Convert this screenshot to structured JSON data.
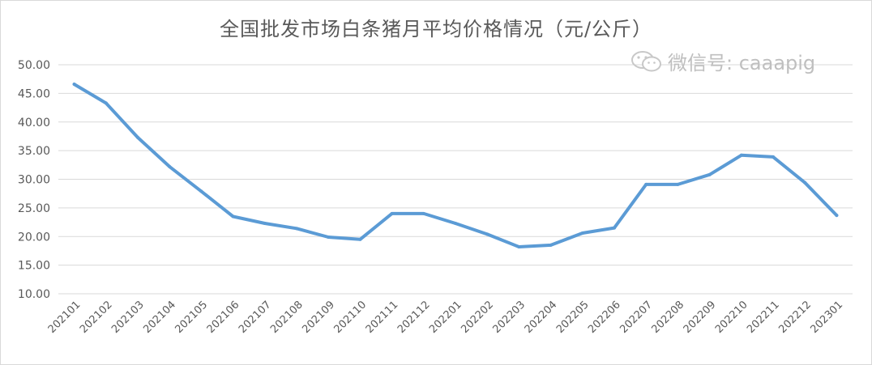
{
  "chart_data": {
    "type": "line",
    "title": "全国批发市场白条猪月平均价格情况（元/公斤）",
    "xlabel": "",
    "ylabel": "",
    "ylim": [
      10,
      50
    ],
    "yticks": [
      "10.00",
      "15.00",
      "20.00",
      "25.00",
      "30.00",
      "35.00",
      "40.00",
      "45.00",
      "50.00"
    ],
    "grid": true,
    "categories": [
      "202101",
      "202102",
      "202103",
      "202104",
      "202105",
      "202106",
      "202107",
      "202108",
      "202109",
      "202110",
      "202111",
      "202112",
      "202201",
      "202202",
      "202203",
      "202204",
      "202205",
      "202206",
      "202207",
      "202208",
      "202209",
      "202210",
      "202211",
      "202212",
      "202301"
    ],
    "series": [
      {
        "values": [
          46.6,
          43.3,
          37.3,
          32.2,
          27.9,
          23.5,
          22.3,
          21.4,
          19.9,
          19.5,
          24.0,
          24.0,
          22.3,
          20.4,
          18.2,
          18.5,
          20.6,
          21.5,
          29.1,
          29.1,
          30.8,
          34.2,
          33.9,
          29.4,
          23.7
        ],
        "color": "#5b9bd5"
      }
    ]
  },
  "watermark": {
    "text": "微信号: caaapig",
    "icon": "wechat-icon"
  }
}
